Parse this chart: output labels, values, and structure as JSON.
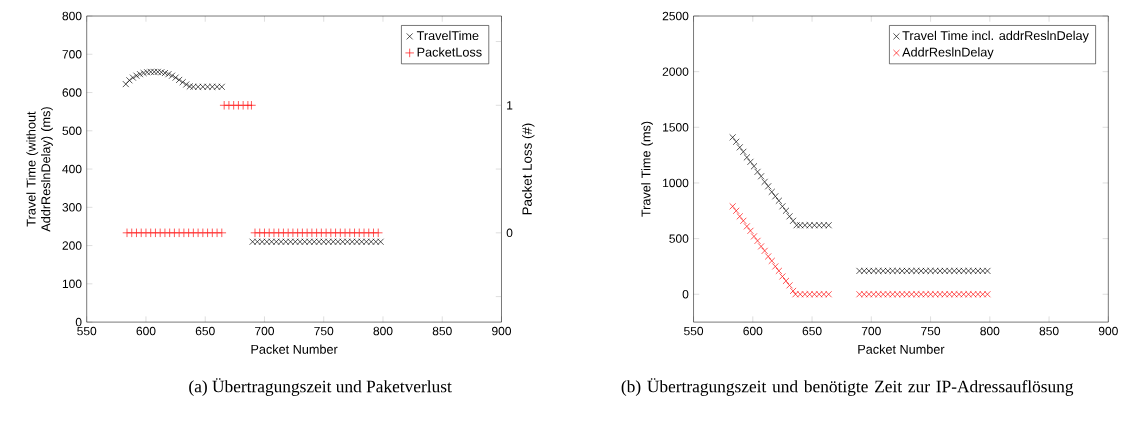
{
  "chart_data": [
    {
      "type": "scatter",
      "title": "(a) Übertragungszeit und Paketverlust",
      "xlabel": "Packet Number",
      "ylabel": "Travel Time (without AddrReslnDelay) (ms)",
      "y2label": "Packet Loss (#)",
      "xlim": [
        550,
        900
      ],
      "xticks": [
        550,
        600,
        650,
        700,
        750,
        800,
        850,
        900
      ],
      "ylim": [
        0,
        800
      ],
      "yticks": [
        0,
        100,
        200,
        300,
        400,
        500,
        600,
        700,
        800
      ],
      "y2lim": [
        -0.7,
        1.7
      ],
      "y2ticks": [
        {
          "value": -0.5,
          "label": null
        },
        0,
        {
          "value": 0.5,
          "label": null
        },
        1,
        {
          "value": 1.5,
          "label": null
        }
      ],
      "legend": "top right",
      "series": [
        {
          "name": "TravelTime",
          "color": "#000000",
          "marker": "cross",
          "x": [
            583,
            586,
            589,
            592,
            595,
            598,
            601,
            604,
            607,
            610,
            613,
            616,
            619,
            622,
            625,
            628,
            631,
            634,
            637,
            640,
            644,
            648,
            652,
            656,
            660,
            664,
            690,
            694,
            698,
            702,
            706,
            710,
            714,
            718,
            722,
            726,
            730,
            734,
            738,
            742,
            746,
            750,
            754,
            758,
            762,
            766,
            770,
            774,
            778,
            782,
            786,
            790,
            794,
            798
          ],
          "values": [
            622,
            632,
            639,
            644,
            648,
            651,
            653,
            654,
            654,
            654,
            653,
            651,
            648,
            644,
            639,
            633,
            627,
            621,
            616,
            615,
            615,
            615,
            615,
            615,
            615,
            615,
            210,
            210,
            210,
            210,
            210,
            210,
            210,
            210,
            210,
            210,
            210,
            210,
            210,
            210,
            210,
            210,
            210,
            210,
            210,
            210,
            210,
            210,
            210,
            210,
            210,
            210,
            210,
            210
          ]
        },
        {
          "name": "PacketLoss",
          "color": "#ff0000",
          "marker": "plus",
          "axis": "y2",
          "x": [
            584,
            588,
            592,
            596,
            600,
            604,
            608,
            612,
            616,
            620,
            624,
            628,
            632,
            636,
            640,
            644,
            648,
            652,
            656,
            660,
            664,
            666,
            670,
            674,
            678,
            682,
            686,
            689,
            692,
            696,
            700,
            704,
            708,
            712,
            716,
            720,
            724,
            728,
            732,
            736,
            740,
            744,
            748,
            752,
            756,
            760,
            764,
            768,
            772,
            776,
            780,
            784,
            788,
            792,
            796
          ],
          "values": [
            0,
            0,
            0,
            0,
            0,
            0,
            0,
            0,
            0,
            0,
            0,
            0,
            0,
            0,
            0,
            0,
            0,
            0,
            0,
            0,
            0,
            1,
            1,
            1,
            1,
            1,
            1,
            1,
            0,
            0,
            0,
            0,
            0,
            0,
            0,
            0,
            0,
            0,
            0,
            0,
            0,
            0,
            0,
            0,
            0,
            0,
            0,
            0,
            0,
            0,
            0,
            0,
            0,
            0,
            0
          ]
        }
      ]
    },
    {
      "type": "scatter",
      "title": "(b) Übertragungszeit und benötigte Zeit zur IP-Adressauflösung",
      "xlabel": "Packet Number",
      "ylabel": "Travel Time (ms)",
      "xlim": [
        550,
        900
      ],
      "xticks": [
        550,
        600,
        650,
        700,
        750,
        800,
        850,
        900
      ],
      "ylim": [
        -250,
        2500
      ],
      "yticks": [
        0,
        500,
        1000,
        1500,
        2000,
        2500
      ],
      "legend": "top right",
      "series": [
        {
          "name": "Travel Time incl. addrReslnDelay",
          "color": "#000000",
          "marker": "cross",
          "x": [
            583,
            586,
            589,
            592,
            595,
            598,
            601,
            604,
            607,
            610,
            613,
            616,
            619,
            622,
            625,
            628,
            631,
            634,
            637,
            640,
            644,
            648,
            652,
            656,
            660,
            664,
            690,
            694,
            698,
            702,
            706,
            710,
            714,
            718,
            722,
            726,
            730,
            734,
            738,
            742,
            746,
            750,
            754,
            758,
            762,
            766,
            770,
            774,
            778,
            782,
            786,
            790,
            794,
            798
          ],
          "values": [
            1410,
            1370,
            1320,
            1280,
            1230,
            1190,
            1150,
            1100,
            1060,
            1010,
            970,
            920,
            880,
            840,
            790,
            750,
            700,
            660,
            620,
            620,
            620,
            620,
            620,
            620,
            620,
            620,
            210,
            210,
            210,
            210,
            210,
            210,
            210,
            210,
            210,
            210,
            210,
            210,
            210,
            210,
            210,
            210,
            210,
            210,
            210,
            210,
            210,
            210,
            210,
            210,
            210,
            210,
            210,
            210
          ]
        },
        {
          "name": "AddrReslnDelay",
          "color": "#ff0000",
          "marker": "cross",
          "x": [
            583,
            586,
            589,
            592,
            595,
            598,
            601,
            604,
            607,
            610,
            613,
            616,
            619,
            622,
            625,
            628,
            631,
            634,
            636,
            640,
            644,
            648,
            652,
            656,
            660,
            664,
            690,
            694,
            698,
            702,
            706,
            710,
            714,
            718,
            722,
            726,
            730,
            734,
            738,
            742,
            746,
            750,
            754,
            758,
            762,
            766,
            770,
            774,
            778,
            782,
            786,
            790,
            794,
            798
          ],
          "values": [
            790,
            750,
            700,
            660,
            610,
            570,
            520,
            480,
            430,
            390,
            340,
            300,
            250,
            210,
            160,
            120,
            80,
            30,
            0,
            0,
            0,
            0,
            0,
            0,
            0,
            0,
            0,
            0,
            0,
            0,
            0,
            0,
            0,
            0,
            0,
            0,
            0,
            0,
            0,
            0,
            0,
            0,
            0,
            0,
            0,
            0,
            0,
            0,
            0,
            0,
            0,
            0,
            0,
            0
          ]
        }
      ]
    }
  ]
}
